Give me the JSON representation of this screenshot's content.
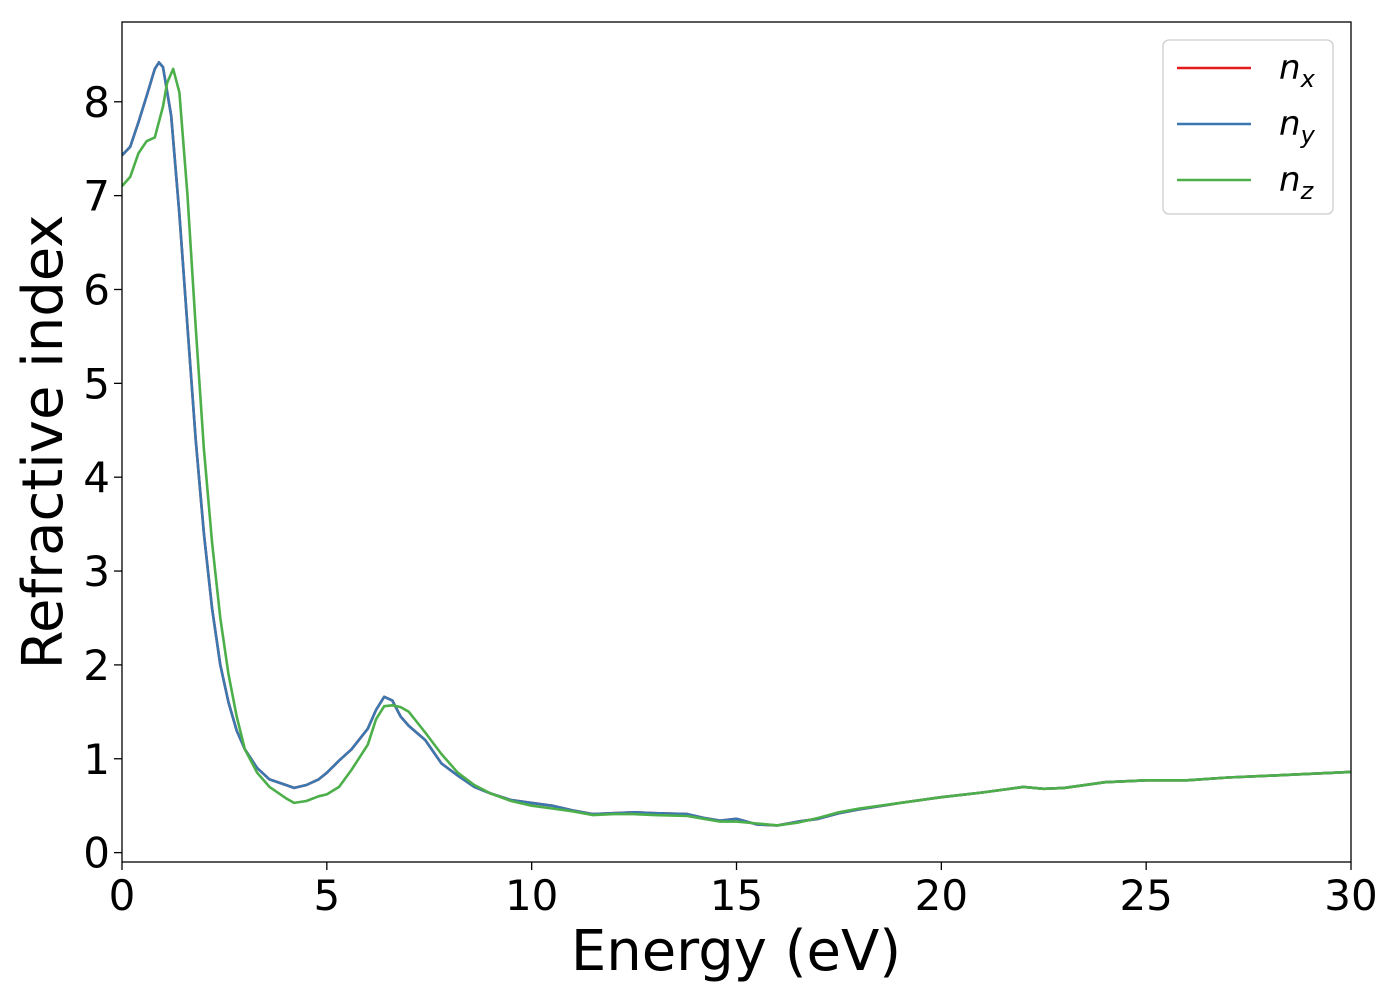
{
  "chart_data": {
    "type": "line",
    "title": "",
    "xlabel": "Energy (eV)",
    "ylabel": "Refractive index",
    "xlim": [
      0,
      30
    ],
    "ylim": [
      -0.1,
      8.85
    ],
    "xticks": [
      0,
      5,
      10,
      15,
      20,
      25,
      30
    ],
    "yticks": [
      0,
      1,
      2,
      3,
      4,
      5,
      6,
      7,
      8
    ],
    "grid": false,
    "legend_position": "top-right",
    "series": [
      {
        "name": "n_x",
        "legend_base": "n",
        "legend_sub": "x",
        "color": "#e41a1c",
        "points": [
          [
            0,
            7.43
          ],
          [
            0.2,
            7.52
          ],
          [
            0.4,
            7.78
          ],
          [
            0.6,
            8.06
          ],
          [
            0.8,
            8.35
          ],
          [
            0.9,
            8.42
          ],
          [
            1.0,
            8.37
          ],
          [
            1.2,
            7.85
          ],
          [
            1.4,
            6.8
          ],
          [
            1.6,
            5.6
          ],
          [
            1.8,
            4.4
          ],
          [
            2.0,
            3.4
          ],
          [
            2.2,
            2.6
          ],
          [
            2.4,
            2.0
          ],
          [
            2.6,
            1.6
          ],
          [
            2.8,
            1.3
          ],
          [
            3.0,
            1.1
          ],
          [
            3.3,
            0.9
          ],
          [
            3.6,
            0.78
          ],
          [
            4.0,
            0.72
          ],
          [
            4.2,
            0.69
          ],
          [
            4.5,
            0.72
          ],
          [
            4.8,
            0.78
          ],
          [
            5.0,
            0.85
          ],
          [
            5.3,
            0.98
          ],
          [
            5.6,
            1.1
          ],
          [
            6.0,
            1.32
          ],
          [
            6.2,
            1.52
          ],
          [
            6.4,
            1.66
          ],
          [
            6.6,
            1.62
          ],
          [
            6.8,
            1.45
          ],
          [
            7.0,
            1.35
          ],
          [
            7.4,
            1.2
          ],
          [
            7.8,
            0.95
          ],
          [
            8.2,
            0.82
          ],
          [
            8.6,
            0.7
          ],
          [
            9.0,
            0.63
          ],
          [
            9.5,
            0.56
          ],
          [
            10.0,
            0.53
          ],
          [
            10.5,
            0.5
          ],
          [
            11.0,
            0.45
          ],
          [
            11.5,
            0.41
          ],
          [
            12.0,
            0.42
          ],
          [
            12.5,
            0.43
          ],
          [
            13.0,
            0.42
          ],
          [
            13.8,
            0.41
          ],
          [
            14.2,
            0.37
          ],
          [
            14.6,
            0.34
          ],
          [
            15.0,
            0.36
          ],
          [
            15.5,
            0.3
          ],
          [
            16.0,
            0.29
          ],
          [
            16.5,
            0.33
          ],
          [
            17.0,
            0.36
          ],
          [
            17.5,
            0.42
          ],
          [
            18.0,
            0.46
          ],
          [
            19.0,
            0.53
          ],
          [
            20.0,
            0.59
          ],
          [
            21.0,
            0.64
          ],
          [
            22.0,
            0.7
          ],
          [
            22.5,
            0.68
          ],
          [
            23.0,
            0.69
          ],
          [
            24.0,
            0.75
          ],
          [
            25.0,
            0.77
          ],
          [
            26.0,
            0.77
          ],
          [
            27.0,
            0.8
          ],
          [
            28.0,
            0.82
          ],
          [
            29.0,
            0.84
          ],
          [
            30.0,
            0.86
          ]
        ]
      },
      {
        "name": "n_y",
        "legend_base": "n",
        "legend_sub": "y",
        "color": "#3b78b0",
        "points": [
          [
            0,
            7.43
          ],
          [
            0.2,
            7.52
          ],
          [
            0.4,
            7.78
          ],
          [
            0.6,
            8.06
          ],
          [
            0.8,
            8.35
          ],
          [
            0.9,
            8.42
          ],
          [
            1.0,
            8.37
          ],
          [
            1.2,
            7.85
          ],
          [
            1.4,
            6.8
          ],
          [
            1.6,
            5.6
          ],
          [
            1.8,
            4.4
          ],
          [
            2.0,
            3.4
          ],
          [
            2.2,
            2.6
          ],
          [
            2.4,
            2.0
          ],
          [
            2.6,
            1.6
          ],
          [
            2.8,
            1.3
          ],
          [
            3.0,
            1.1
          ],
          [
            3.3,
            0.9
          ],
          [
            3.6,
            0.78
          ],
          [
            4.0,
            0.72
          ],
          [
            4.2,
            0.69
          ],
          [
            4.5,
            0.72
          ],
          [
            4.8,
            0.78
          ],
          [
            5.0,
            0.85
          ],
          [
            5.3,
            0.98
          ],
          [
            5.6,
            1.1
          ],
          [
            6.0,
            1.32
          ],
          [
            6.2,
            1.52
          ],
          [
            6.4,
            1.66
          ],
          [
            6.6,
            1.62
          ],
          [
            6.8,
            1.45
          ],
          [
            7.0,
            1.35
          ],
          [
            7.4,
            1.2
          ],
          [
            7.8,
            0.95
          ],
          [
            8.2,
            0.82
          ],
          [
            8.6,
            0.7
          ],
          [
            9.0,
            0.63
          ],
          [
            9.5,
            0.56
          ],
          [
            10.0,
            0.53
          ],
          [
            10.5,
            0.5
          ],
          [
            11.0,
            0.45
          ],
          [
            11.5,
            0.41
          ],
          [
            12.0,
            0.42
          ],
          [
            12.5,
            0.43
          ],
          [
            13.0,
            0.42
          ],
          [
            13.8,
            0.41
          ],
          [
            14.2,
            0.37
          ],
          [
            14.6,
            0.34
          ],
          [
            15.0,
            0.36
          ],
          [
            15.5,
            0.3
          ],
          [
            16.0,
            0.29
          ],
          [
            16.5,
            0.33
          ],
          [
            17.0,
            0.36
          ],
          [
            17.5,
            0.42
          ],
          [
            18.0,
            0.46
          ],
          [
            19.0,
            0.53
          ],
          [
            20.0,
            0.59
          ],
          [
            21.0,
            0.64
          ],
          [
            22.0,
            0.7
          ],
          [
            22.5,
            0.68
          ],
          [
            23.0,
            0.69
          ],
          [
            24.0,
            0.75
          ],
          [
            25.0,
            0.77
          ],
          [
            26.0,
            0.77
          ],
          [
            27.0,
            0.8
          ],
          [
            28.0,
            0.82
          ],
          [
            29.0,
            0.84
          ],
          [
            30.0,
            0.86
          ]
        ]
      },
      {
        "name": "n_z",
        "legend_base": "n",
        "legend_sub": "z",
        "color": "#4daf4a",
        "points": [
          [
            0,
            7.1
          ],
          [
            0.2,
            7.2
          ],
          [
            0.4,
            7.45
          ],
          [
            0.6,
            7.58
          ],
          [
            0.8,
            7.62
          ],
          [
            1.0,
            7.95
          ],
          [
            1.1,
            8.2
          ],
          [
            1.25,
            8.35
          ],
          [
            1.4,
            8.1
          ],
          [
            1.6,
            7.0
          ],
          [
            1.8,
            5.6
          ],
          [
            2.0,
            4.3
          ],
          [
            2.2,
            3.3
          ],
          [
            2.4,
            2.5
          ],
          [
            2.6,
            1.9
          ],
          [
            2.8,
            1.45
          ],
          [
            3.0,
            1.1
          ],
          [
            3.3,
            0.85
          ],
          [
            3.6,
            0.7
          ],
          [
            4.0,
            0.58
          ],
          [
            4.2,
            0.53
          ],
          [
            4.5,
            0.55
          ],
          [
            4.8,
            0.6
          ],
          [
            5.0,
            0.62
          ],
          [
            5.3,
            0.7
          ],
          [
            5.6,
            0.88
          ],
          [
            6.0,
            1.15
          ],
          [
            6.2,
            1.42
          ],
          [
            6.4,
            1.56
          ],
          [
            6.6,
            1.57
          ],
          [
            6.8,
            1.55
          ],
          [
            7.0,
            1.5
          ],
          [
            7.4,
            1.28
          ],
          [
            7.8,
            1.05
          ],
          [
            8.2,
            0.85
          ],
          [
            8.6,
            0.72
          ],
          [
            9.0,
            0.63
          ],
          [
            9.5,
            0.55
          ],
          [
            10.0,
            0.5
          ],
          [
            10.5,
            0.47
          ],
          [
            11.0,
            0.44
          ],
          [
            11.5,
            0.4
          ],
          [
            12.0,
            0.41
          ],
          [
            12.5,
            0.41
          ],
          [
            13.0,
            0.4
          ],
          [
            13.8,
            0.39
          ],
          [
            14.2,
            0.36
          ],
          [
            14.6,
            0.33
          ],
          [
            15.0,
            0.33
          ],
          [
            15.5,
            0.31
          ],
          [
            16.0,
            0.29
          ],
          [
            16.5,
            0.32
          ],
          [
            17.0,
            0.37
          ],
          [
            17.5,
            0.43
          ],
          [
            18.0,
            0.47
          ],
          [
            19.0,
            0.53
          ],
          [
            20.0,
            0.59
          ],
          [
            21.0,
            0.64
          ],
          [
            22.0,
            0.7
          ],
          [
            22.5,
            0.68
          ],
          [
            23.0,
            0.69
          ],
          [
            24.0,
            0.75
          ],
          [
            25.0,
            0.77
          ],
          [
            26.0,
            0.77
          ],
          [
            27.0,
            0.8
          ],
          [
            28.0,
            0.82
          ],
          [
            29.0,
            0.84
          ],
          [
            30.0,
            0.86
          ]
        ]
      }
    ]
  }
}
